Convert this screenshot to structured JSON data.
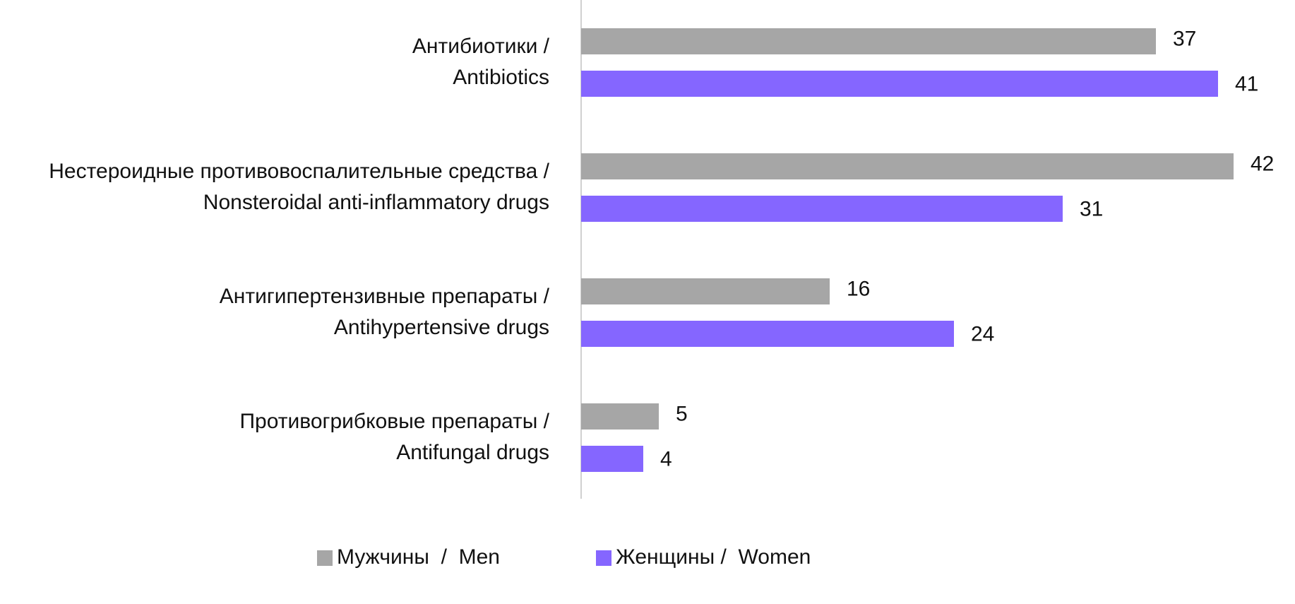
{
  "chart_data": {
    "type": "bar",
    "orientation": "horizontal",
    "categories": [
      [
        "Антибиотики /",
        "Antibiotics"
      ],
      [
        "Нестероидные противовоспалительные средства /",
        "Nonsteroidal anti-inflammatory drugs"
      ],
      [
        "Антигипертензивные препараты /",
        "Antihypertensive drugs"
      ],
      [
        "Противогрибковые препараты /",
        "Antifungal drugs"
      ]
    ],
    "series": [
      {
        "name": "Мужчины  /  Men",
        "color": "#a6a6a6",
        "values": [
          37,
          42,
          16,
          5
        ]
      },
      {
        "name": "Женщины /  Women",
        "color": "#8566ff",
        "values": [
          41,
          31,
          24,
          4
        ]
      }
    ],
    "legend": "bottom"
  }
}
